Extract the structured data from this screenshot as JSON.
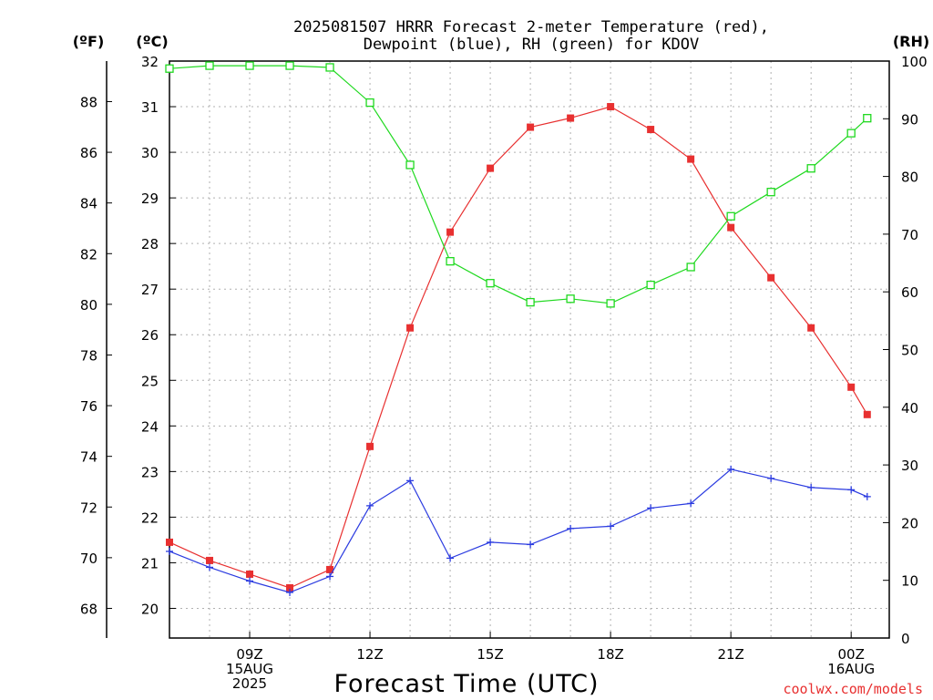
{
  "title_line1": "2025081507 HRRR Forecast 2-meter Temperature (red),",
  "title_line2": "Dewpoint (blue), RH (green) for KDOV",
  "unit_f": "(ºF)",
  "unit_c": "(ºC)",
  "unit_rh": "(RH)",
  "xlabel": "Forecast Time (UTC)",
  "credit": "coolwx.com/models",
  "colors": {
    "temperature": "#e83030",
    "dewpoint": "#2b3be0",
    "rh": "#1fd91f",
    "grid": "#b0b0b0"
  },
  "chart_data": {
    "type": "line",
    "x_hours_utc": [
      7,
      8,
      9,
      10,
      11,
      12,
      13,
      14,
      15,
      16,
      17,
      18,
      19,
      20,
      21,
      22,
      23,
      24,
      24.4
    ],
    "x_ticks": [
      {
        "hour": 9,
        "lines": [
          "09Z",
          "15AUG",
          "2025"
        ]
      },
      {
        "hour": 12,
        "lines": [
          "12Z"
        ]
      },
      {
        "hour": 15,
        "lines": [
          "15Z"
        ]
      },
      {
        "hour": 18,
        "lines": [
          "18Z"
        ]
      },
      {
        "hour": 21,
        "lines": [
          "21Z"
        ]
      },
      {
        "hour": 24,
        "lines": [
          "00Z",
          "16AUG"
        ]
      }
    ],
    "xlim": [
      7,
      24.95
    ],
    "ylim_c": [
      19.35,
      32
    ],
    "ylim_rh": [
      0,
      100
    ],
    "y_ticks_c": [
      "20",
      "21",
      "22",
      "23",
      "24",
      "25",
      "26",
      "27",
      "28",
      "29",
      "30",
      "31",
      "32"
    ],
    "y_ticks_f": [
      "68",
      "70",
      "72",
      "74",
      "76",
      "78",
      "80",
      "82",
      "84",
      "86",
      "88"
    ],
    "y_ticks_rh": [
      "0",
      "10",
      "20",
      "30",
      "40",
      "50",
      "60",
      "70",
      "80",
      "90",
      "100"
    ],
    "grid": true,
    "series": [
      {
        "key": "temperature",
        "unit": "C",
        "marker": "filled-square",
        "values": [
          21.45,
          21.05,
          20.75,
          20.45,
          20.85,
          23.55,
          26.15,
          28.25,
          29.65,
          30.55,
          30.75,
          31.0,
          30.5,
          29.85,
          28.35,
          27.25,
          26.15,
          24.85,
          24.25
        ]
      },
      {
        "key": "dewpoint",
        "unit": "C",
        "marker": "plus",
        "values": [
          21.25,
          20.9,
          20.6,
          20.35,
          20.7,
          22.25,
          22.8,
          21.1,
          21.45,
          21.4,
          21.75,
          21.8,
          22.2,
          22.3,
          23.05,
          22.85,
          22.65,
          22.6,
          22.45
        ]
      },
      {
        "key": "rh",
        "unit": "percent",
        "marker": "open-square",
        "values": [
          98.7,
          99.2,
          99.2,
          99.2,
          98.9,
          92.8,
          82.0,
          65.3,
          61.5,
          58.2,
          58.8,
          58.0,
          61.2,
          64.3,
          73.1,
          77.3,
          81.4,
          87.5,
          90.1
        ]
      }
    ]
  }
}
